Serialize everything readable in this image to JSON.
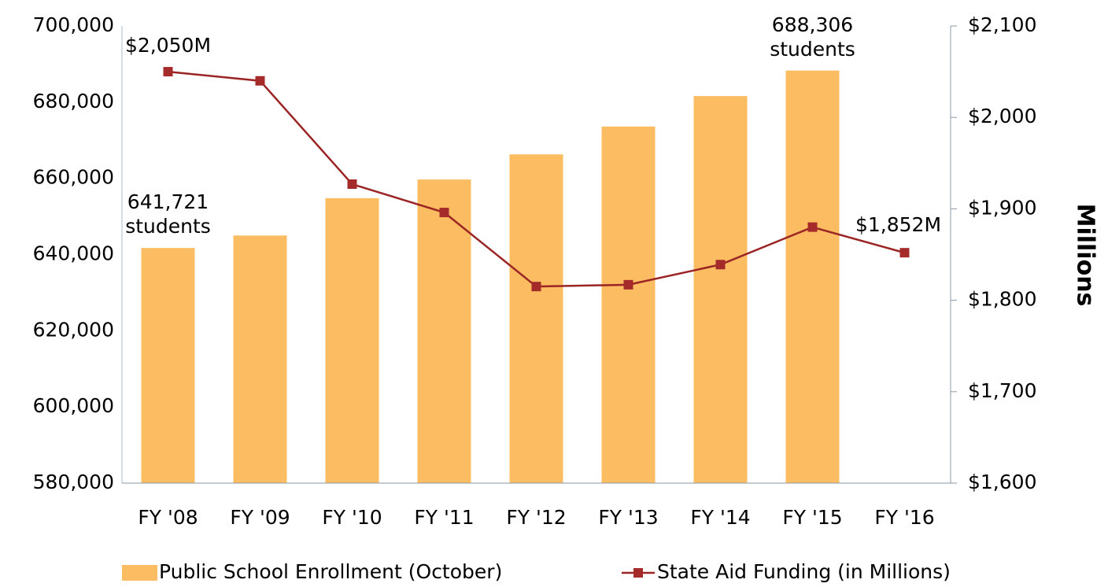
{
  "chart_data": {
    "type": "bar_line",
    "categories": [
      "FY '08",
      "FY '09",
      "FY '10",
      "FY '11",
      "FY '12",
      "FY '13",
      "FY '14",
      "FY '15",
      "FY '16"
    ],
    "series": [
      {
        "name": "Public School Enrollment (October)",
        "type": "bar",
        "color": "#fbbc62",
        "values": [
          641721,
          645000,
          654800,
          659700,
          666300,
          673600,
          681600,
          688306,
          null
        ],
        "value_labels": [
          "641,721 students",
          null,
          null,
          null,
          null,
          null,
          null,
          "688,306 students",
          null
        ]
      },
      {
        "name": "State Aid Funding (in Millions)",
        "type": "line",
        "axis": "y2",
        "color": "#9b2424",
        "values": [
          2050,
          2040,
          1927,
          1896,
          1815,
          1817,
          1839,
          1880,
          1852
        ],
        "value_labels": [
          "$2,050M",
          null,
          null,
          null,
          null,
          null,
          null,
          null,
          "$1,852M"
        ]
      }
    ],
    "ylim": [
      580000,
      700000
    ],
    "yticks": [
      {
        "value": 580000,
        "label": "580,000"
      },
      {
        "value": 600000,
        "label": "600,000"
      },
      {
        "value": 620000,
        "label": "620,000"
      },
      {
        "value": 640000,
        "label": "640,000"
      },
      {
        "value": 660000,
        "label": "660,000"
      },
      {
        "value": 680000,
        "label": "680,000"
      },
      {
        "value": 700000,
        "label": "700,000"
      }
    ],
    "y2lim": [
      1600,
      2100
    ],
    "y2ticks": [
      {
        "value": 1600,
        "label": "$1,600"
      },
      {
        "value": 1700,
        "label": "$1,700"
      },
      {
        "value": 1800,
        "label": "$1,800"
      },
      {
        "value": 1900,
        "label": "$1,900"
      },
      {
        "value": 2000,
        "label": "$2,000"
      },
      {
        "value": 2100,
        "label": "$2,100"
      }
    ],
    "y2_label": "Millions",
    "legend": "bottom"
  }
}
